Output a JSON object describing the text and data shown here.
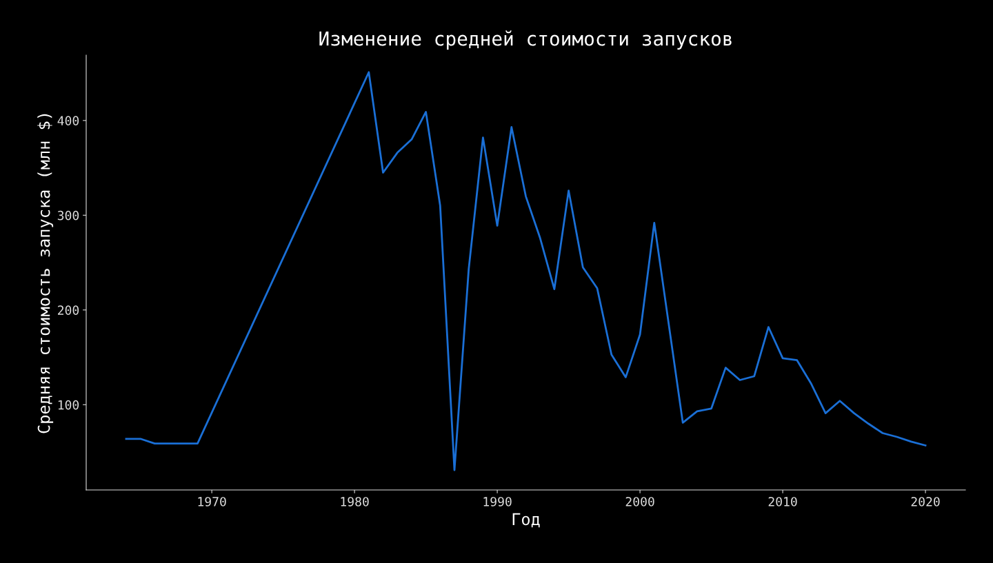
{
  "chart_data": {
    "type": "line",
    "title": "Изменение средней стоимости запусков",
    "xlabel": "Год",
    "ylabel": "Средняя стоимость запуска (млн $)",
    "x": [
      1964,
      1965,
      1966,
      1967,
      1968,
      1969,
      1981,
      1982,
      1983,
      1984,
      1985,
      1986,
      1987,
      1988,
      1989,
      1990,
      1991,
      1992,
      1993,
      1994,
      1995,
      1996,
      1997,
      1998,
      1999,
      2000,
      2001,
      2003,
      2004,
      2005,
      2006,
      2007,
      2008,
      2009,
      2010,
      2011,
      2012,
      2013,
      2014,
      2015,
      2016,
      2017,
      2018,
      2019,
      2020
    ],
    "series": [
      {
        "color": "#1a6fd6",
        "values": [
          64,
          64,
          59,
          59,
          59,
          59,
          451,
          345,
          366,
          380,
          409,
          310,
          31,
          243,
          382,
          289,
          393,
          320,
          276,
          222,
          326,
          245,
          223,
          153,
          129,
          174,
          292,
          81,
          93,
          96,
          139,
          126,
          130,
          182,
          149,
          147,
          122,
          91,
          104,
          91,
          80,
          70,
          66,
          61,
          57
        ]
      }
    ],
    "xlim": [
      1961.2,
      2022.8
    ],
    "ylim": [
      10,
      469
    ],
    "xticks": [
      1970,
      1980,
      1990,
      2000,
      2010,
      2020
    ],
    "yticks": [
      100,
      200,
      300,
      400
    ],
    "grid": false,
    "legend": false
  }
}
